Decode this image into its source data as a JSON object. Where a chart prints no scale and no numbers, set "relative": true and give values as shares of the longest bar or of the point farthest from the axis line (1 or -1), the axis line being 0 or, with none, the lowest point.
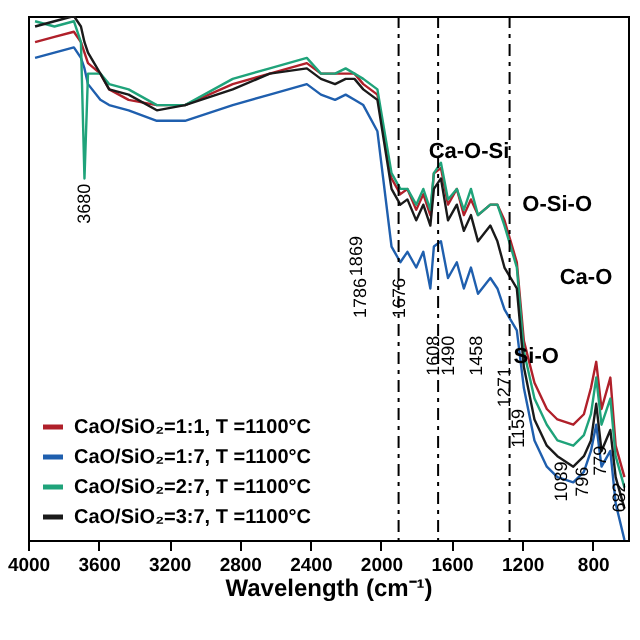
{
  "chart_data": {
    "type": "line",
    "relative": true,
    "xlabel": "Wavelength (cm⁻¹)",
    "x": [
      3960,
      3850,
      3740,
      3700,
      3680,
      3660,
      3590,
      3540,
      3430,
      3270,
      3110,
      2840,
      2630,
      2420,
      2340,
      2260,
      2200,
      2150,
      2100,
      2020,
      1940,
      1890,
      1850,
      1800,
      1760,
      1720,
      1700,
      1660,
      1620,
      1570,
      1530,
      1490,
      1450,
      1380,
      1340,
      1300,
      1230,
      1190,
      1130,
      1060,
      1000,
      910,
      850,
      810,
      780,
      750,
      700,
      670,
      620
    ],
    "xlim": [
      4000,
      600
    ],
    "xticks": [
      4000,
      3600,
      3200,
      2800,
      2400,
      2000,
      1600,
      1200,
      800
    ],
    "legend": "bottom left",
    "line_style": "solid",
    "series": [
      {
        "name": "CaO/SiO₂=1:1, T =1100°C",
        "color": "#b0202a",
        "values": [
          0.95,
          0.96,
          0.97,
          0.95,
          0.93,
          0.91,
          0.89,
          0.86,
          0.84,
          0.83,
          0.83,
          0.87,
          0.89,
          0.91,
          0.89,
          0.89,
          0.89,
          0.89,
          0.87,
          0.85,
          0.69,
          0.66,
          0.67,
          0.63,
          0.66,
          0.62,
          0.7,
          0.71,
          0.64,
          0.67,
          0.62,
          0.65,
          0.62,
          0.64,
          0.64,
          0.61,
          0.53,
          0.38,
          0.3,
          0.25,
          0.23,
          0.22,
          0.24,
          0.29,
          0.34,
          0.25,
          0.31,
          0.18,
          0.12
        ]
      },
      {
        "name": "CaO/SiO₂=1:7, T =1100°C",
        "color": "#1f5fae",
        "values": [
          0.92,
          0.93,
          0.94,
          0.92,
          0.9,
          0.87,
          0.84,
          0.83,
          0.82,
          0.8,
          0.8,
          0.83,
          0.85,
          0.87,
          0.85,
          0.84,
          0.85,
          0.84,
          0.83,
          0.78,
          0.56,
          0.53,
          0.55,
          0.52,
          0.55,
          0.48,
          0.56,
          0.57,
          0.5,
          0.53,
          0.48,
          0.52,
          0.47,
          0.5,
          0.48,
          0.44,
          0.4,
          0.29,
          0.19,
          0.14,
          0.12,
          0.11,
          0.13,
          0.17,
          0.22,
          0.14,
          0.17,
          0.07,
          0.0
        ]
      },
      {
        "name": "CaO/SiO₂=2:7, T =1100°C",
        "color": "#1fa37a",
        "values": [
          0.99,
          0.98,
          0.99,
          0.95,
          0.69,
          0.89,
          0.89,
          0.87,
          0.86,
          0.83,
          0.83,
          0.88,
          0.9,
          0.92,
          0.89,
          0.89,
          0.9,
          0.89,
          0.88,
          0.86,
          0.7,
          0.67,
          0.67,
          0.64,
          0.67,
          0.63,
          0.7,
          0.72,
          0.65,
          0.67,
          0.63,
          0.67,
          0.62,
          0.64,
          0.64,
          0.6,
          0.52,
          0.36,
          0.27,
          0.22,
          0.19,
          0.18,
          0.2,
          0.24,
          0.31,
          0.22,
          0.27,
          0.16,
          0.1
        ]
      },
      {
        "name": "CaO/SiO₂=3:7, T =1100°C",
        "color": "#1a1a1a",
        "values": [
          0.98,
          0.99,
          1.0,
          0.98,
          0.95,
          0.93,
          0.89,
          0.86,
          0.85,
          0.82,
          0.83,
          0.86,
          0.89,
          0.9,
          0.88,
          0.87,
          0.88,
          0.88,
          0.86,
          0.84,
          0.67,
          0.64,
          0.65,
          0.61,
          0.64,
          0.6,
          0.67,
          0.69,
          0.61,
          0.64,
          0.59,
          0.62,
          0.57,
          0.6,
          0.57,
          0.52,
          0.48,
          0.33,
          0.23,
          0.18,
          0.16,
          0.14,
          0.16,
          0.19,
          0.26,
          0.17,
          0.21,
          0.12,
          0.06
        ]
      }
    ],
    "ref_lines": [
      {
        "axis": "x",
        "value": 1900,
        "line_style": "dashed"
      },
      {
        "axis": "x",
        "value": 1676,
        "line_style": "dashed"
      },
      {
        "axis": "x",
        "value": 1271,
        "line_style": "dashed"
      }
    ],
    "annotations": [
      {
        "text": "3680",
        "x": 3680,
        "y": 0.68
      },
      "1869",
      "1786",
      "1676",
      "1608",
      "1490",
      "1458",
      "1271",
      {
        "text": "1159",
        "x": 1225,
        "y": 0.25
      },
      {
        "text": "1089",
        "x": 980,
        "y": 0.15
      },
      {
        "text": "796",
        "x": 863,
        "y": 0.14
      },
      {
        "text": "779",
        "x": 757,
        "y": 0.18
      },
      {
        "text": "682",
        "x": 650,
        "y": 0.11
      },
      "Ca-O-Si",
      "O-Si-O",
      {
        "text": "Si-O",
        "x": 1120,
        "y": 0.35
      },
      "Ca-O"
    ]
  }
}
